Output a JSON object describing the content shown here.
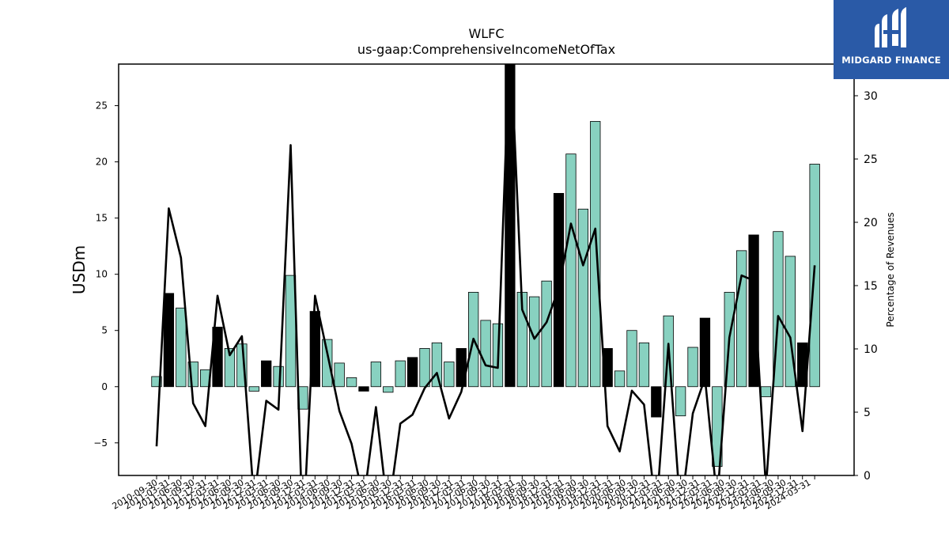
{
  "brand": {
    "name": "MIDGARD FINANCE",
    "color": "#2a5aa7"
  },
  "chart_data": {
    "type": "bar",
    "title": "WLFC",
    "subtitle": "us-gaap:ComprehensiveIncomeNetOfTax",
    "ylabel": "USDm",
    "y2label": "Percentage of Revenues",
    "ylim": [
      -7.9,
      28.7
    ],
    "y2lim": [
      0,
      32.5
    ],
    "yticks": [
      -5,
      0,
      5,
      10,
      15,
      20,
      25
    ],
    "y2ticks": [
      0,
      5,
      10,
      15,
      20,
      25,
      30
    ],
    "tick_labels_visible": [
      "2010-09-30",
      "2011-03-31",
      "2011-06-30",
      "2011-09-30",
      "2011-12-31",
      "2012-03-31",
      "2012-06-30",
      "2012-09-30",
      "2012-12-31",
      "2013-03-31",
      "2013-06-30",
      "2013-09-30",
      "2013-12-31",
      "2014-03-31",
      "2014-06-30",
      "2014-09-30",
      "2014-12-31",
      "2015-03-31",
      "2015-06-30",
      "2015-09-30",
      "2015-12-31",
      "2016-03-31",
      "2016-06-30",
      "2016-09-30",
      "2016-12-31",
      "2017-03-31",
      "2017-06-30",
      "2017-09-30",
      "2017-12-31",
      "2018-03-31",
      "2018-06-30",
      "2018-09-30",
      "2018-12-31",
      "2019-03-31",
      "2019-06-30",
      "2019-09-30",
      "2019-12-31",
      "2020-03-31",
      "2020-06-30",
      "2020-09-30",
      "2020-12-31",
      "2021-03-31",
      "2021-06-30",
      "2021-09-30",
      "2021-12-31",
      "2022-03-31",
      "2022-06-30",
      "2022-09-30",
      "2022-12-31",
      "2023-03-31",
      "2023-06-30",
      "2023-09-30",
      "2023-12-31",
      "2024-03-31"
    ],
    "categories": [
      "2010-09-30",
      "2010-12-31",
      "2011-03-31",
      "2011-06-30",
      "2011-09-30",
      "2011-12-31",
      "2012-03-31",
      "2012-06-30",
      "2012-09-30",
      "2012-12-31",
      "2013-03-31",
      "2013-06-30",
      "2013-09-30",
      "2013-12-31",
      "2014-03-31",
      "2014-06-30",
      "2014-09-30",
      "2014-12-31",
      "2015-03-31",
      "2015-06-30",
      "2015-09-30",
      "2015-12-31",
      "2016-03-31",
      "2016-06-30",
      "2016-09-30",
      "2016-12-31",
      "2017-03-31",
      "2017-06-30",
      "2017-09-30",
      "2017-12-31",
      "2018-03-31",
      "2018-06-30",
      "2018-09-30",
      "2018-12-31",
      "2019-03-31",
      "2019-06-30",
      "2019-09-30",
      "2019-12-31",
      "2020-03-31",
      "2020-06-30",
      "2020-09-30",
      "2020-12-31",
      "2021-03-31",
      "2021-06-30",
      "2021-09-30",
      "2021-12-31",
      "2022-03-31",
      "2022-06-30",
      "2022-09-30",
      "2022-12-31",
      "2023-03-31",
      "2023-06-30",
      "2023-09-30",
      "2023-12-31",
      "2024-03-31"
    ],
    "series": [
      {
        "kind": "bar",
        "color": "#88d1c0",
        "highlight_color": "#000000",
        "values": [
          0.9,
          8.3,
          7.0,
          2.2,
          1.5,
          5.3,
          3.4,
          3.8,
          -0.4,
          2.3,
          1.8,
          9.9,
          -2.0,
          6.7,
          4.2,
          2.1,
          0.8,
          -0.4,
          2.2,
          -0.5,
          2.3,
          2.6,
          3.4,
          3.9,
          2.2,
          3.4,
          8.4,
          5.9,
          5.6,
          30.0,
          8.4,
          8.0,
          9.4,
          17.2,
          20.7,
          15.8,
          23.6,
          3.4,
          1.4,
          5.0,
          3.9,
          -2.7,
          6.3,
          -2.6,
          3.5,
          6.1,
          -7.1,
          8.4,
          12.1,
          13.5,
          -0.9,
          13.8,
          11.6,
          3.9,
          19.8
        ],
        "highlighted": [
          false,
          true,
          false,
          false,
          false,
          true,
          false,
          false,
          false,
          true,
          false,
          false,
          false,
          true,
          false,
          false,
          false,
          true,
          false,
          false,
          false,
          true,
          false,
          false,
          false,
          true,
          false,
          false,
          false,
          true,
          false,
          false,
          false,
          true,
          false,
          false,
          false,
          true,
          false,
          false,
          false,
          true,
          false,
          false,
          false,
          true,
          false,
          false,
          false,
          true,
          false,
          false,
          false,
          true,
          false
        ]
      },
      {
        "kind": "line",
        "axis": "right",
        "color": "#000000",
        "values": [
          2.3,
          21.1,
          17.2,
          5.7,
          3.9,
          14.2,
          9.5,
          11.0,
          -2.0,
          5.9,
          5.2,
          26.1,
          -5.0,
          14.2,
          9.7,
          5.1,
          2.5,
          -2.0,
          5.4,
          -3.0,
          4.1,
          4.8,
          6.9,
          8.1,
          4.5,
          6.6,
          10.8,
          8.7,
          8.5,
          35.0,
          13.1,
          10.8,
          12.1,
          14.8,
          19.9,
          16.6,
          19.5,
          3.9,
          1.9,
          6.7,
          5.6,
          -3.0,
          10.4,
          -3.0,
          4.9,
          7.7,
          -2.0,
          10.9,
          15.8,
          15.4,
          -1.0,
          12.6,
          10.9,
          3.5,
          16.6
        ]
      }
    ]
  }
}
